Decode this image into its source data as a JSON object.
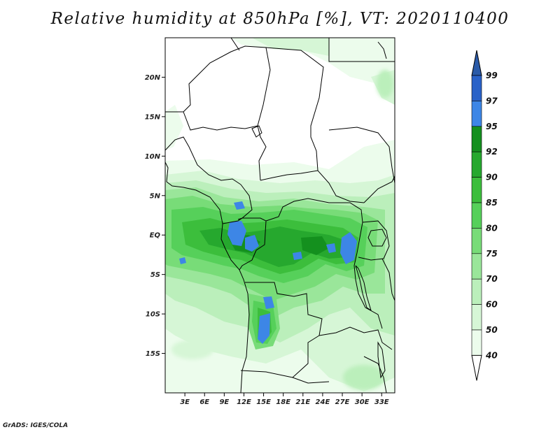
{
  "title": "Relative humidity at 850hPa [%], VT: 2020110400",
  "credit": "GrADS: IGES/COLA",
  "map": {
    "lon_range": [
      0,
      35
    ],
    "lat_range": [
      -20,
      25
    ],
    "lon_ticks": [
      {
        "value": 3,
        "label": "3E"
      },
      {
        "value": 6,
        "label": "6E"
      },
      {
        "value": 9,
        "label": "9E"
      },
      {
        "value": 12,
        "label": "12E"
      },
      {
        "value": 15,
        "label": "15E"
      },
      {
        "value": 18,
        "label": "18E"
      },
      {
        "value": 21,
        "label": "21E"
      },
      {
        "value": 24,
        "label": "24E"
      },
      {
        "value": 27,
        "label": "27E"
      },
      {
        "value": 30,
        "label": "30E"
      },
      {
        "value": 33,
        "label": "33E"
      }
    ],
    "lat_ticks": [
      {
        "value": 20,
        "label": "20N"
      },
      {
        "value": 15,
        "label": "15N"
      },
      {
        "value": 10,
        "label": "10N"
      },
      {
        "value": 5,
        "label": "5N"
      },
      {
        "value": 0,
        "label": "EQ"
      },
      {
        "value": -5,
        "label": "5S"
      },
      {
        "value": -10,
        "label": "10S"
      },
      {
        "value": -15,
        "label": "15S"
      }
    ]
  },
  "colorbar": {
    "levels": [
      "99",
      "97",
      "95",
      "92",
      "90",
      "85",
      "80",
      "75",
      "70",
      "60",
      "50",
      "40"
    ],
    "colors": [
      "#2a62c8",
      "#3d86e6",
      "#14901e",
      "#26a82e",
      "#3cbe3c",
      "#56d05a",
      "#78dc78",
      "#9ae69a",
      "#bbefbb",
      "#d6f6d6",
      "#ecfcec",
      "#ffffff"
    ],
    "top_triangle_color": "#2a5aa8",
    "bottom_triangle_color": "#ffffff"
  }
}
